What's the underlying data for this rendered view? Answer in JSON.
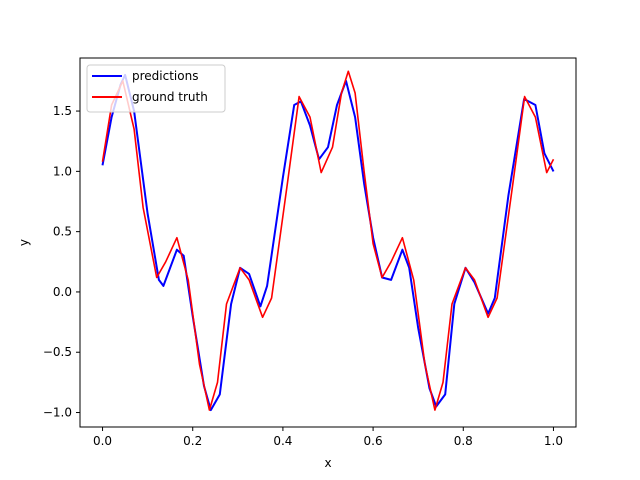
{
  "chart_data": {
    "type": "line",
    "title": "",
    "xlabel": "x",
    "ylabel": "y",
    "xlim": [
      -0.05,
      1.05
    ],
    "ylim": [
      -1.12,
      1.94
    ],
    "xticks": [
      0.0,
      0.2,
      0.4,
      0.6,
      0.8,
      1.0
    ],
    "xtick_labels": [
      "0.0",
      "0.2",
      "0.4",
      "0.6",
      "0.8",
      "1.0"
    ],
    "yticks": [
      -1.0,
      -0.5,
      0.0,
      0.5,
      1.0,
      1.5
    ],
    "ytick_labels": [
      "−1.0",
      "−0.5",
      "0.0",
      "0.5",
      "1.0",
      "1.5"
    ],
    "grid": false,
    "legend_position": "top-left",
    "series": [
      {
        "name": "predictions",
        "color": "#0000ff",
        "x": [
          0.0,
          0.02,
          0.04,
          0.05,
          0.07,
          0.1,
          0.125,
          0.135,
          0.165,
          0.18,
          0.2,
          0.225,
          0.24,
          0.26,
          0.285,
          0.305,
          0.325,
          0.35,
          0.365,
          0.4,
          0.425,
          0.44,
          0.46,
          0.48,
          0.5,
          0.52,
          0.54,
          0.56,
          0.58,
          0.6,
          0.62,
          0.64,
          0.665,
          0.68,
          0.7,
          0.725,
          0.74,
          0.76,
          0.78,
          0.805,
          0.825,
          0.855,
          0.87,
          0.9,
          0.935,
          0.96,
          0.98,
          1.0
        ],
        "y": [
          1.05,
          1.45,
          1.72,
          1.8,
          1.5,
          0.65,
          0.1,
          0.05,
          0.35,
          0.3,
          -0.2,
          -0.78,
          -0.98,
          -0.85,
          -0.1,
          0.2,
          0.15,
          -0.12,
          0.05,
          0.95,
          1.55,
          1.58,
          1.38,
          1.1,
          1.2,
          1.55,
          1.75,
          1.45,
          0.9,
          0.45,
          0.12,
          0.1,
          0.35,
          0.2,
          -0.3,
          -0.8,
          -0.95,
          -0.85,
          -0.1,
          0.2,
          0.08,
          -0.18,
          -0.05,
          0.8,
          1.6,
          1.55,
          1.15,
          1.0
        ]
      },
      {
        "name": "ground truth",
        "color": "#ff0000",
        "x": [
          0.0,
          0.02,
          0.045,
          0.07,
          0.09,
          0.12,
          0.14,
          0.165,
          0.19,
          0.215,
          0.237,
          0.255,
          0.275,
          0.305,
          0.325,
          0.355,
          0.375,
          0.41,
          0.436,
          0.46,
          0.485,
          0.51,
          0.53,
          0.545,
          0.56,
          0.58,
          0.6,
          0.62,
          0.64,
          0.665,
          0.69,
          0.715,
          0.737,
          0.755,
          0.775,
          0.805,
          0.825,
          0.855,
          0.875,
          0.91,
          0.936,
          0.96,
          0.985,
          1.0
        ],
        "y": [
          1.08,
          1.55,
          1.75,
          1.35,
          0.7,
          0.12,
          0.25,
          0.45,
          0.1,
          -0.6,
          -0.98,
          -0.75,
          -0.1,
          0.2,
          0.1,
          -0.21,
          -0.05,
          0.9,
          1.62,
          1.45,
          0.99,
          1.2,
          1.65,
          1.83,
          1.65,
          1.0,
          0.4,
          0.12,
          0.25,
          0.45,
          0.1,
          -0.6,
          -0.98,
          -0.75,
          -0.1,
          0.2,
          0.1,
          -0.21,
          -0.05,
          0.9,
          1.62,
          1.45,
          0.99,
          1.1
        ]
      }
    ]
  }
}
